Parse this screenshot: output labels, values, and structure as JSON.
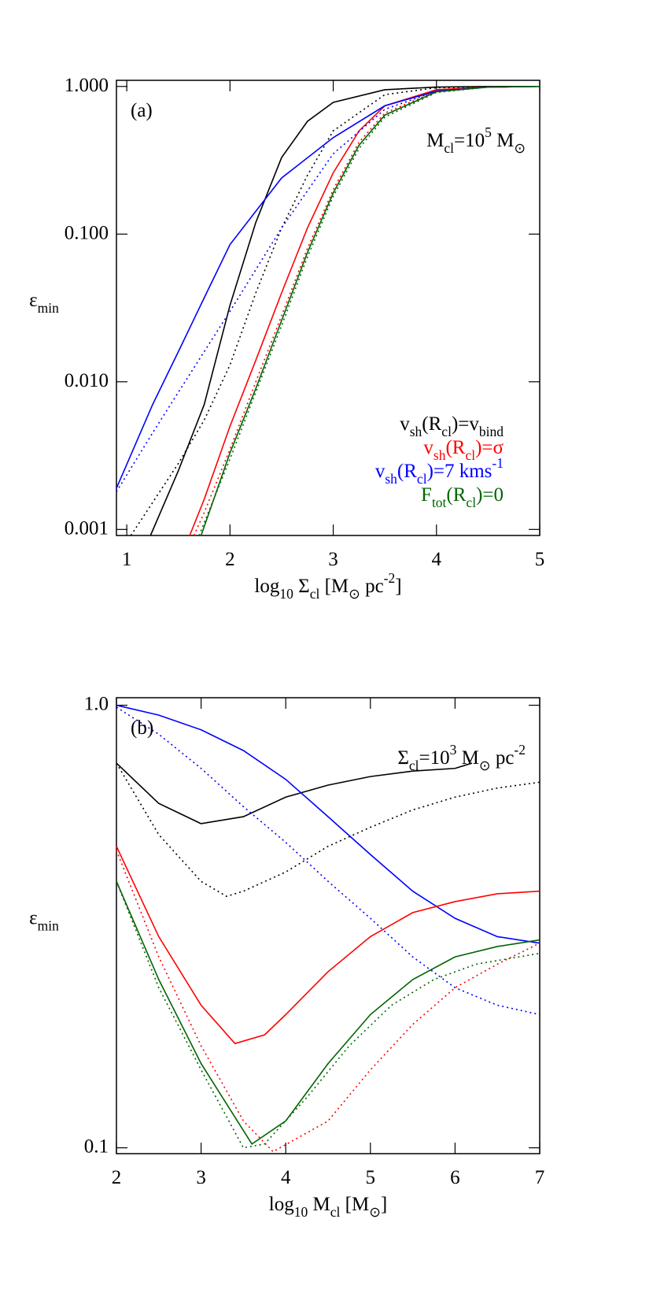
{
  "chart_data": [
    {
      "type": "line",
      "panel_label": "(a)",
      "annotation": "M_{cl}=10^{5} M_{⊙}",
      "xlabel": "log_{10} Σ_{cl} [M_{⊙} pc^{-2}]",
      "ylabel": "ε_{min}",
      "xlim": [
        0.9,
        5
      ],
      "ylim": [
        0.00091,
        1.1
      ],
      "ylog": true,
      "grid": false,
      "legend": "lower right",
      "xticks": [
        1,
        2,
        3,
        4,
        5
      ],
      "yticks": [
        0.001,
        {
          "value": 0.01,
          "label": "0.010"
        },
        {
          "value": 0.1,
          "label": "0.100"
        },
        {
          "value": 1,
          "label": "1.000"
        }
      ],
      "series": [
        {
          "name": "v_{sh}(R_{cl})=v_{bind}",
          "color": "#000000",
          "dash": "solid",
          "x": [
            1.23,
            1.5,
            1.75,
            2.0,
            2.25,
            2.5,
            2.75,
            3.0,
            3.5,
            4.0,
            4.5,
            5.0
          ],
          "values": [
            0.00091,
            0.0025,
            0.007,
            0.033,
            0.12,
            0.33,
            0.58,
            0.78,
            0.95,
            0.99,
            1.0,
            1.0
          ]
        },
        {
          "color": "#000000",
          "dash": "dotted",
          "x": [
            1.04,
            1.5,
            1.75,
            2.0,
            2.25,
            2.5,
            2.75,
            3.0,
            3.5,
            4.0,
            5.0
          ],
          "values": [
            0.00091,
            0.0028,
            0.0055,
            0.013,
            0.04,
            0.11,
            0.25,
            0.5,
            0.88,
            0.98,
            1.0
          ]
        },
        {
          "name": "v_{sh}(R_{cl})=σ",
          "color": "#ff0000",
          "dash": "solid",
          "x": [
            1.61,
            1.75,
            2.0,
            2.25,
            2.5,
            2.75,
            3.0,
            3.25,
            3.5,
            4.0,
            4.5,
            5.0
          ],
          "values": [
            0.00091,
            0.0016,
            0.005,
            0.014,
            0.04,
            0.11,
            0.26,
            0.5,
            0.74,
            0.95,
            0.99,
            1.0
          ]
        },
        {
          "color": "#ff0000",
          "dash": "dotted",
          "x": [
            1.65,
            1.75,
            2.0,
            2.25,
            2.5,
            2.75,
            3.0,
            3.25,
            3.5,
            4.0,
            4.5,
            5.0
          ],
          "values": [
            0.00091,
            0.0013,
            0.0035,
            0.01,
            0.028,
            0.08,
            0.2,
            0.42,
            0.66,
            0.93,
            0.99,
            1.0
          ]
        },
        {
          "name": "v_{sh}(R_{cl})=7 kms^{-1}",
          "color": "#0000ff",
          "dash": "solid",
          "x": [
            0.9,
            1.25,
            1.5,
            1.75,
            2.0,
            2.5,
            3.0,
            3.5,
            4.0,
            4.5,
            5.0
          ],
          "values": [
            0.0019,
            0.007,
            0.016,
            0.037,
            0.085,
            0.24,
            0.45,
            0.74,
            0.93,
            0.99,
            1.0
          ]
        },
        {
          "color": "#0000ff",
          "dash": "dotted",
          "x": [
            0.9,
            1.25,
            1.5,
            1.75,
            2.0,
            2.5,
            3.0,
            3.5,
            4.0,
            4.5,
            5.0
          ],
          "values": [
            0.0018,
            0.0045,
            0.0085,
            0.016,
            0.03,
            0.11,
            0.35,
            0.7,
            0.93,
            0.99,
            1.0
          ]
        },
        {
          "name": "F_{tot}(R_{cl})=0",
          "color": "#006400",
          "dash": "solid",
          "x": [
            1.72,
            2.0,
            2.25,
            2.5,
            2.75,
            3.0,
            3.25,
            3.5,
            4.0,
            4.5,
            5.0
          ],
          "values": [
            0.00091,
            0.0033,
            0.009,
            0.026,
            0.075,
            0.19,
            0.4,
            0.64,
            0.92,
            0.99,
            1.0
          ]
        },
        {
          "color": "#006400",
          "dash": "dotted",
          "x": [
            1.7,
            2.0,
            2.25,
            2.5,
            2.75,
            3.0,
            3.25,
            3.5,
            4.0,
            4.5,
            5.0
          ],
          "values": [
            0.00091,
            0.003,
            0.0085,
            0.024,
            0.07,
            0.18,
            0.38,
            0.62,
            0.91,
            0.99,
            1.0
          ]
        }
      ]
    },
    {
      "type": "line",
      "panel_label": "(b)",
      "annotation": "Σ_{cl}=10^{3} M_{⊙} pc^{-2}",
      "xlabel": "log_{10} M_{cl} [M_{⊙}]",
      "ylabel": "ε_{min}",
      "xlim": [
        2,
        7
      ],
      "ylim": [
        0.097,
        1.04
      ],
      "ylog": true,
      "grid": false,
      "xticks": [
        2,
        3,
        4,
        5,
        6,
        7
      ],
      "yticks": [
        0.1,
        {
          "value": 1,
          "label": "1.0"
        }
      ],
      "series": [
        {
          "color": "#000000",
          "dash": "solid",
          "x": [
            2,
            2.5,
            3,
            3.5,
            4,
            4.5,
            5,
            5.5,
            6,
            6.2
          ],
          "values": [
            0.74,
            0.6,
            0.54,
            0.56,
            0.62,
            0.66,
            0.69,
            0.71,
            0.72,
            0.74
          ]
        },
        {
          "color": "#000000",
          "dash": "dotted",
          "x": [
            2,
            2.5,
            3,
            3.3,
            3.5,
            4,
            4.5,
            5,
            5.5,
            6,
            6.5,
            7
          ],
          "values": [
            0.74,
            0.51,
            0.4,
            0.37,
            0.38,
            0.42,
            0.48,
            0.53,
            0.58,
            0.62,
            0.65,
            0.67
          ]
        },
        {
          "color": "#0000ff",
          "dash": "solid",
          "x": [
            2,
            2.5,
            3,
            3.5,
            4,
            4.5,
            5,
            5.5,
            6,
            6.5,
            7
          ],
          "values": [
            1.0,
            0.95,
            0.88,
            0.79,
            0.68,
            0.56,
            0.46,
            0.38,
            0.33,
            0.3,
            0.29
          ]
        },
        {
          "color": "#0000ff",
          "dash": "dotted",
          "x": [
            2,
            2.5,
            3,
            3.5,
            4,
            4.5,
            5,
            5.5,
            6,
            6.5,
            7
          ],
          "values": [
            0.99,
            0.86,
            0.72,
            0.59,
            0.49,
            0.4,
            0.33,
            0.27,
            0.23,
            0.21,
            0.2
          ]
        },
        {
          "color": "#ff0000",
          "dash": "solid",
          "x": [
            2,
            2.5,
            3,
            3.4,
            3.75,
            4,
            4.5,
            5,
            5.5,
            6,
            6.5,
            7
          ],
          "values": [
            0.48,
            0.3,
            0.21,
            0.172,
            0.18,
            0.2,
            0.25,
            0.3,
            0.34,
            0.36,
            0.375,
            0.38
          ]
        },
        {
          "color": "#ff0000",
          "dash": "dotted",
          "x": [
            2,
            2.5,
            3,
            3.5,
            3.85,
            4.5,
            5,
            5.5,
            6,
            6.5,
            7
          ],
          "values": [
            0.47,
            0.27,
            0.17,
            0.115,
            0.098,
            0.115,
            0.15,
            0.19,
            0.23,
            0.26,
            0.29
          ]
        },
        {
          "color": "#006400",
          "dash": "solid",
          "x": [
            2,
            2.5,
            3,
            3.6,
            4,
            4.5,
            5,
            5.5,
            6,
            6.5,
            7
          ],
          "values": [
            0.4,
            0.24,
            0.155,
            0.102,
            0.115,
            0.155,
            0.2,
            0.24,
            0.27,
            0.285,
            0.295
          ]
        },
        {
          "color": "#006400",
          "dash": "dotted",
          "x": [
            2,
            2.5,
            3,
            3.5,
            3.75,
            4.25,
            4.75,
            5.25,
            5.75,
            6.25,
            7
          ],
          "values": [
            0.4,
            0.23,
            0.15,
            0.1,
            0.102,
            0.13,
            0.17,
            0.21,
            0.24,
            0.26,
            0.275
          ]
        }
      ]
    }
  ]
}
